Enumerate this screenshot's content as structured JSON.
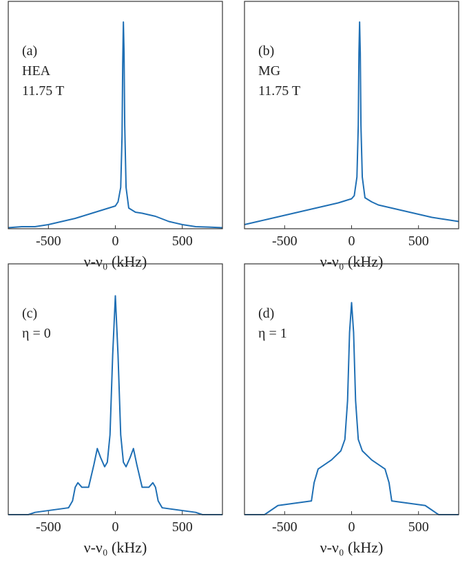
{
  "chart_data": [
    {
      "type": "line",
      "annotations": [
        "(a)",
        "HEA",
        "11.75 T"
      ],
      "xlabel": "ν-ν₀ (kHz)",
      "xlim": [
        -800,
        800
      ],
      "xticks": [
        -500,
        0,
        500
      ],
      "ylim": [
        0,
        1.1
      ],
      "x": [
        -800,
        -700,
        -600,
        -500,
        -400,
        -300,
        -200,
        -100,
        -50,
        0,
        20,
        40,
        50,
        55,
        60,
        65,
        70,
        80,
        100,
        150,
        200,
        300,
        400,
        500,
        600,
        700,
        800
      ],
      "series": [
        {
          "color": "#1f6fb4",
          "values": [
            0.005,
            0.01,
            0.01,
            0.02,
            0.035,
            0.05,
            0.07,
            0.09,
            0.1,
            0.11,
            0.13,
            0.2,
            0.45,
            0.8,
            1.0,
            0.85,
            0.5,
            0.2,
            0.1,
            0.08,
            0.075,
            0.06,
            0.035,
            0.02,
            0.01,
            0.008,
            0.005
          ]
        }
      ]
    },
    {
      "type": "line",
      "annotations": [
        "(b)",
        "MG",
        "11.75 T"
      ],
      "xlabel": "ν-ν₀ (kHz)",
      "xlim": [
        -800,
        800
      ],
      "xticks": [
        -500,
        0,
        500
      ],
      "ylim": [
        0,
        1.1
      ],
      "x": [
        -800,
        -700,
        -600,
        -500,
        -400,
        -300,
        -200,
        -100,
        -50,
        0,
        20,
        40,
        50,
        55,
        60,
        65,
        70,
        80,
        100,
        150,
        200,
        300,
        400,
        500,
        600,
        700,
        800
      ],
      "series": [
        {
          "color": "#1f6fb4",
          "values": [
            0.02,
            0.035,
            0.05,
            0.065,
            0.08,
            0.095,
            0.11,
            0.125,
            0.135,
            0.145,
            0.16,
            0.25,
            0.5,
            0.85,
            1.0,
            0.85,
            0.5,
            0.25,
            0.15,
            0.13,
            0.115,
            0.1,
            0.085,
            0.07,
            0.055,
            0.045,
            0.035
          ]
        }
      ]
    },
    {
      "type": "line",
      "annotations": [
        "(c)",
        "η = 0"
      ],
      "xlabel": "ν-ν₀ (kHz)",
      "xlim": [
        -800,
        800
      ],
      "xticks": [
        -500,
        0,
        500
      ],
      "ylim": [
        0,
        1.1
      ],
      "x": [
        -800,
        -650,
        -600,
        -350,
        -320,
        -300,
        -280,
        -250,
        -200,
        -160,
        -135,
        -110,
        -80,
        -60,
        -40,
        -20,
        0,
        20,
        40,
        60,
        80,
        110,
        135,
        160,
        200,
        250,
        280,
        300,
        320,
        350,
        600,
        650,
        800
      ],
      "series": [
        {
          "color": "#1f6fb4",
          "values": [
            0,
            0,
            0.01,
            0.03,
            0.06,
            0.12,
            0.14,
            0.12,
            0.12,
            0.22,
            0.29,
            0.25,
            0.21,
            0.23,
            0.35,
            0.7,
            0.96,
            0.7,
            0.35,
            0.23,
            0.21,
            0.25,
            0.29,
            0.22,
            0.12,
            0.12,
            0.14,
            0.12,
            0.06,
            0.03,
            0.01,
            0,
            0
          ]
        }
      ]
    },
    {
      "type": "line",
      "annotations": [
        "(d)",
        "η = 1"
      ],
      "xlabel": "ν-ν₀ (kHz)",
      "xlim": [
        -800,
        800
      ],
      "xticks": [
        -500,
        0,
        500
      ],
      "ylim": [
        0,
        1.1
      ],
      "x": [
        -800,
        -650,
        -600,
        -550,
        -300,
        -280,
        -250,
        -150,
        -80,
        -50,
        -30,
        -15,
        0,
        15,
        30,
        50,
        80,
        150,
        250,
        280,
        300,
        550,
        600,
        650,
        800
      ],
      "series": [
        {
          "color": "#1f6fb4",
          "values": [
            0,
            0,
            0.02,
            0.04,
            0.06,
            0.14,
            0.2,
            0.24,
            0.28,
            0.33,
            0.5,
            0.8,
            0.93,
            0.8,
            0.5,
            0.33,
            0.28,
            0.24,
            0.2,
            0.14,
            0.06,
            0.04,
            0.02,
            0,
            0
          ]
        }
      ]
    }
  ]
}
